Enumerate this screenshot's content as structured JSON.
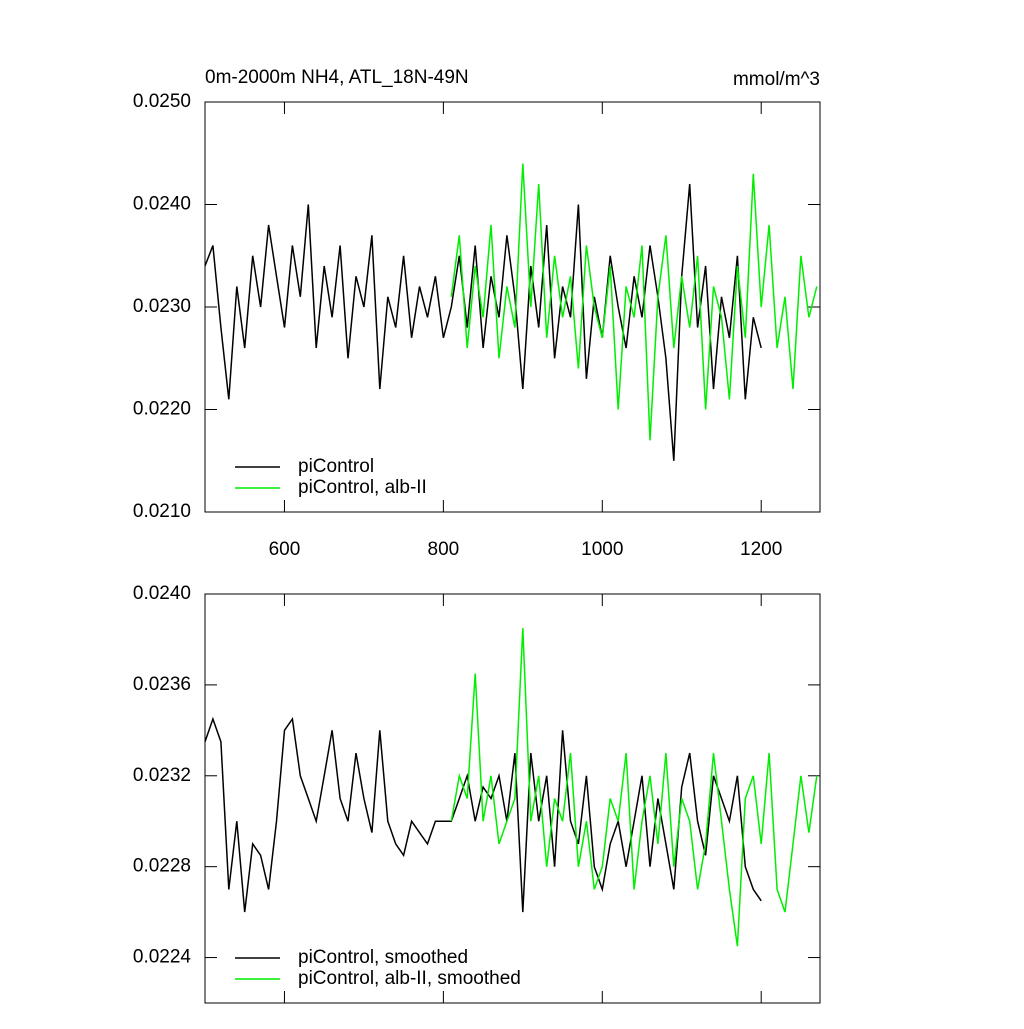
{
  "chart_data": [
    {
      "type": "line",
      "title": "0m-2000m NH4, ATL_18N-49N",
      "units": "mmol/m^3",
      "xlim": [
        500,
        1274
      ],
      "xticks": [
        600,
        800,
        1000,
        1200
      ],
      "show_xtick_labels": true,
      "ylim": [
        0.021,
        0.025
      ],
      "yticks": [
        {
          "value": 0.021,
          "label": "0.0210"
        },
        {
          "value": 0.022,
          "label": "0.0220"
        },
        {
          "value": 0.023,
          "label": "0.0230"
        },
        {
          "value": 0.024,
          "label": "0.0240"
        },
        {
          "value": 0.025,
          "label": "0.0250"
        }
      ],
      "legend": "lower left",
      "series": [
        {
          "name": "piControl",
          "color": "#000000",
          "x": [
            500,
            510,
            520,
            530,
            540,
            550,
            560,
            570,
            580,
            590,
            600,
            610,
            620,
            630,
            640,
            650,
            660,
            670,
            680,
            690,
            700,
            710,
            720,
            730,
            740,
            750,
            760,
            770,
            780,
            790,
            800,
            810,
            820,
            830,
            840,
            850,
            860,
            870,
            880,
            890,
            900,
            910,
            920,
            930,
            940,
            950,
            960,
            970,
            980,
            990,
            1000,
            1010,
            1020,
            1030,
            1040,
            1050,
            1060,
            1070,
            1080,
            1090,
            1100,
            1110,
            1120,
            1130,
            1140,
            1150,
            1160,
            1170,
            1180,
            1190,
            1200
          ],
          "values": [
            0.0234,
            0.0236,
            0.0228,
            0.0221,
            0.0232,
            0.0226,
            0.0235,
            0.023,
            0.0238,
            0.0233,
            0.0228,
            0.0236,
            0.0231,
            0.024,
            0.0226,
            0.0234,
            0.0229,
            0.0236,
            0.0225,
            0.0233,
            0.023,
            0.0237,
            0.0222,
            0.0231,
            0.0228,
            0.0235,
            0.0227,
            0.0232,
            0.0229,
            0.0233,
            0.0227,
            0.023,
            0.0235,
            0.0228,
            0.0236,
            0.0226,
            0.0233,
            0.0229,
            0.0237,
            0.0231,
            0.0222,
            0.0234,
            0.0228,
            0.0238,
            0.0225,
            0.0232,
            0.0229,
            0.024,
            0.0223,
            0.0231,
            0.0227,
            0.0235,
            0.023,
            0.0226,
            0.0233,
            0.0229,
            0.0236,
            0.0231,
            0.0225,
            0.0215,
            0.0233,
            0.0242,
            0.0228,
            0.0234,
            0.0222,
            0.0231,
            0.0227,
            0.0235,
            0.0221,
            0.0229,
            0.0226
          ]
        },
        {
          "name": "piControl, alb-II",
          "color": "#00ee00",
          "x": [
            810,
            820,
            830,
            840,
            850,
            860,
            870,
            880,
            890,
            900,
            910,
            920,
            930,
            940,
            950,
            960,
            970,
            980,
            990,
            1000,
            1010,
            1020,
            1030,
            1040,
            1050,
            1060,
            1070,
            1080,
            1090,
            1100,
            1110,
            1120,
            1130,
            1140,
            1150,
            1160,
            1170,
            1180,
            1190,
            1200,
            1210,
            1220,
            1230,
            1240,
            1250,
            1260,
            1270
          ],
          "values": [
            0.0231,
            0.0237,
            0.0226,
            0.0234,
            0.0229,
            0.0238,
            0.0225,
            0.0232,
            0.0228,
            0.0244,
            0.023,
            0.0242,
            0.0227,
            0.0235,
            0.0229,
            0.0233,
            0.0224,
            0.0236,
            0.023,
            0.0227,
            0.0234,
            0.022,
            0.0232,
            0.0229,
            0.0236,
            0.0217,
            0.0231,
            0.0237,
            0.0226,
            0.0233,
            0.0228,
            0.0235,
            0.022,
            0.0232,
            0.0229,
            0.0221,
            0.0234,
            0.0227,
            0.0243,
            0.023,
            0.0238,
            0.0226,
            0.0231,
            0.0222,
            0.0235,
            0.0229,
            0.0232
          ]
        }
      ]
    },
    {
      "type": "line",
      "xlim": [
        500,
        1274
      ],
      "xticks": [
        600,
        800,
        1000,
        1200
      ],
      "show_xtick_labels": false,
      "ylim": [
        0.0222,
        0.024
      ],
      "yticks": [
        {
          "value": 0.0224,
          "label": "0.0224"
        },
        {
          "value": 0.0228,
          "label": "0.0228"
        },
        {
          "value": 0.0232,
          "label": "0.0232"
        },
        {
          "value": 0.0236,
          "label": "0.0236"
        },
        {
          "value": 0.024,
          "label": "0.0240"
        }
      ],
      "legend": "lower left",
      "series": [
        {
          "name": "piControl, smoothed",
          "color": "#000000",
          "x": [
            500,
            510,
            520,
            530,
            540,
            550,
            560,
            570,
            580,
            590,
            600,
            610,
            620,
            630,
            640,
            650,
            660,
            670,
            680,
            690,
            700,
            710,
            720,
            730,
            740,
            750,
            760,
            770,
            780,
            790,
            800,
            810,
            820,
            830,
            840,
            850,
            860,
            870,
            880,
            890,
            900,
            910,
            920,
            930,
            940,
            950,
            960,
            970,
            980,
            990,
            1000,
            1010,
            1020,
            1030,
            1040,
            1050,
            1060,
            1070,
            1080,
            1090,
            1100,
            1110,
            1120,
            1130,
            1140,
            1150,
            1160,
            1170,
            1180,
            1190,
            1200
          ],
          "values": [
            0.02335,
            0.02345,
            0.02335,
            0.0227,
            0.023,
            0.0226,
            0.0229,
            0.02285,
            0.0227,
            0.023,
            0.0234,
            0.02345,
            0.0232,
            0.0231,
            0.023,
            0.0232,
            0.0234,
            0.0231,
            0.023,
            0.0233,
            0.0231,
            0.02295,
            0.0234,
            0.023,
            0.0229,
            0.02285,
            0.023,
            0.02295,
            0.0229,
            0.023,
            0.023,
            0.023,
            0.0231,
            0.0232,
            0.023,
            0.02315,
            0.0231,
            0.0232,
            0.023,
            0.0233,
            0.0226,
            0.0233,
            0.023,
            0.0232,
            0.0228,
            0.0234,
            0.023,
            0.0229,
            0.0232,
            0.0228,
            0.0227,
            0.0229,
            0.023,
            0.0228,
            0.023,
            0.0232,
            0.0228,
            0.0231,
            0.0229,
            0.0227,
            0.02315,
            0.0233,
            0.023,
            0.02285,
            0.0232,
            0.0231,
            0.023,
            0.0232,
            0.0228,
            0.0227,
            0.02265
          ]
        },
        {
          "name": "piControl, alb-II, smoothed",
          "color": "#00ee00",
          "x": [
            810,
            820,
            830,
            840,
            850,
            860,
            870,
            880,
            890,
            900,
            910,
            920,
            930,
            940,
            950,
            960,
            970,
            980,
            990,
            1000,
            1010,
            1020,
            1030,
            1040,
            1050,
            1060,
            1070,
            1080,
            1090,
            1100,
            1110,
            1120,
            1130,
            1140,
            1150,
            1160,
            1170,
            1180,
            1190,
            1200,
            1210,
            1220,
            1230,
            1240,
            1250,
            1260,
            1270
          ],
          "values": [
            0.023,
            0.0232,
            0.0231,
            0.02365,
            0.023,
            0.0232,
            0.0229,
            0.023,
            0.0231,
            0.02385,
            0.023,
            0.0232,
            0.0228,
            0.0231,
            0.023,
            0.0233,
            0.0228,
            0.023,
            0.0227,
            0.0228,
            0.0231,
            0.023,
            0.0233,
            0.0227,
            0.023,
            0.0232,
            0.0229,
            0.0233,
            0.0228,
            0.0231,
            0.023,
            0.0227,
            0.0229,
            0.0233,
            0.023,
            0.0227,
            0.02245,
            0.0231,
            0.0232,
            0.0229,
            0.0233,
            0.0227,
            0.0226,
            0.0229,
            0.0232,
            0.02295,
            0.0232
          ]
        }
      ]
    }
  ]
}
